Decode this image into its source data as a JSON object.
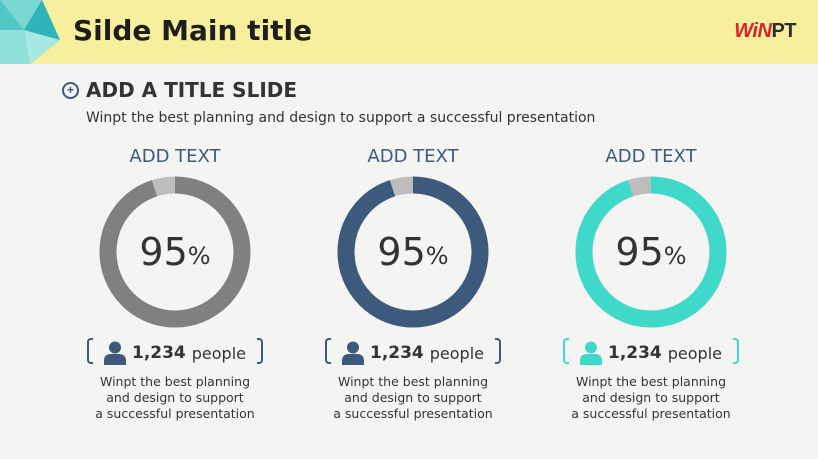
{
  "header": {
    "title": "Silde Main title",
    "logo_win": "WiN",
    "logo_pt": "PT"
  },
  "section": {
    "title": "ADD A TITLE SLIDE",
    "subtitle": "Winpt the best planning and design to support a successful presentation"
  },
  "cards": [
    {
      "title": "ADD TEXT",
      "percent": "95",
      "percent_sign": "%",
      "count": "1,234",
      "unit": "people",
      "desc_lines": [
        "Winpt the best planning",
        "and design to support",
        "a successful presentation"
      ],
      "color": "#808080",
      "remainder_color": "#bdbdbd",
      "bracket_color": "#3d5a7d",
      "icon_color": "#3d5a7d"
    },
    {
      "title": "ADD TEXT",
      "percent": "95",
      "percent_sign": "%",
      "count": "1,234",
      "unit": "people",
      "desc_lines": [
        "Winpt the best planning",
        "and design to support",
        "a successful presentation"
      ],
      "color": "#3d5a7d",
      "remainder_color": "#bdbdbd",
      "bracket_color": "#3d5a7d",
      "icon_color": "#3d5a7d"
    },
    {
      "title": "ADD TEXT",
      "percent": "95",
      "percent_sign": "%",
      "count": "1,234",
      "unit": "people",
      "desc_lines": [
        "Winpt the best planning",
        "and design to support",
        "a successful presentation"
      ],
      "color": "#3fd9c9",
      "remainder_color": "#bdbdbd",
      "bracket_color": "#3fd9c9",
      "icon_color": "#3fd9c9"
    }
  ],
  "icons": {
    "section": "plus-circle-icon",
    "person": "person-icon"
  },
  "colors": {
    "header_bg": "#f7ee9e",
    "accent": "#3d5a7d"
  }
}
